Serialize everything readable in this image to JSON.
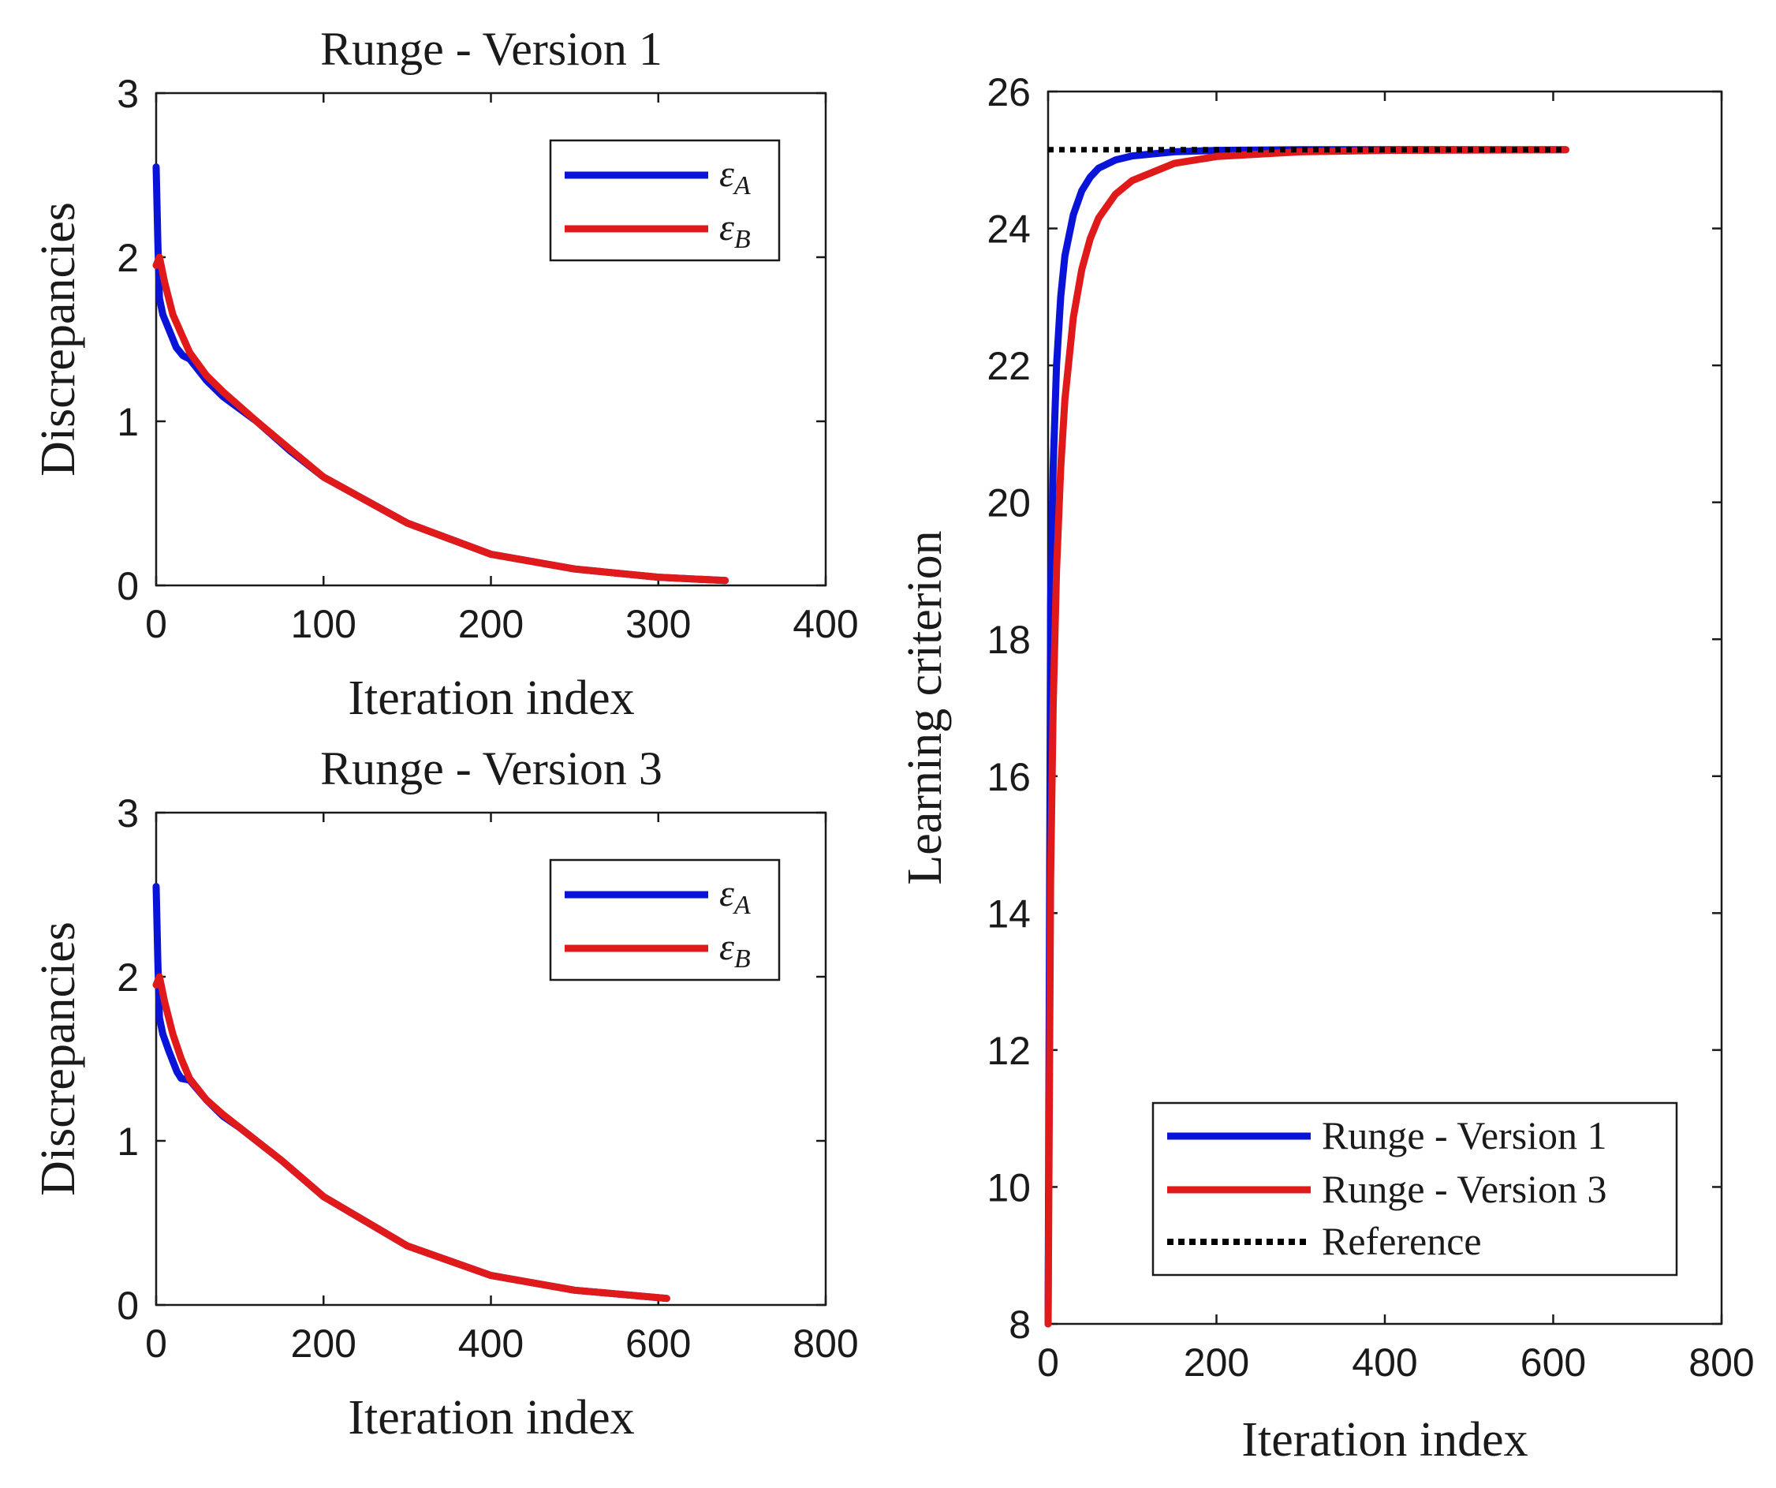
{
  "colors": {
    "series_a": "#0a14d8",
    "series_b": "#e01a1a",
    "reference": "#000000"
  },
  "chart_data": [
    {
      "id": "top-left",
      "type": "line",
      "title": "Runge - Version 1",
      "xlabel": "Iteration index",
      "ylabel": "Discrepancies",
      "xlim": [
        0,
        400
      ],
      "ylim": [
        0,
        3
      ],
      "xticks": [
        0,
        100,
        200,
        300,
        400
      ],
      "yticks": [
        0,
        1,
        2,
        3
      ],
      "legend_position": "top-right",
      "series": [
        {
          "name": "ε_A",
          "symbol": "ε",
          "subscript": "A",
          "color": "#0a14d8",
          "x": [
            0,
            1,
            2,
            4,
            8,
            12,
            16,
            20,
            30,
            40,
            60,
            80,
            100,
            150,
            200,
            250,
            300,
            340
          ],
          "y": [
            2.55,
            2.1,
            1.75,
            1.65,
            1.55,
            1.45,
            1.4,
            1.38,
            1.25,
            1.15,
            1.0,
            0.82,
            0.66,
            0.38,
            0.19,
            0.1,
            0.05,
            0.03
          ]
        },
        {
          "name": "ε_B",
          "symbol": "ε",
          "subscript": "B",
          "color": "#e01a1a",
          "x": [
            0,
            2,
            5,
            10,
            20,
            30,
            40,
            60,
            80,
            100,
            150,
            200,
            250,
            300,
            340
          ],
          "y": [
            1.95,
            2.0,
            1.85,
            1.65,
            1.42,
            1.28,
            1.18,
            1.0,
            0.83,
            0.66,
            0.38,
            0.19,
            0.1,
            0.05,
            0.03
          ]
        }
      ]
    },
    {
      "id": "bottom-left",
      "type": "line",
      "title": "Runge - Version 3",
      "xlabel": "Iteration index",
      "ylabel": "Discrepancies",
      "xlim": [
        0,
        800
      ],
      "ylim": [
        0,
        3
      ],
      "xticks": [
        0,
        200,
        400,
        600,
        800
      ],
      "yticks": [
        0,
        1,
        2,
        3
      ],
      "legend_position": "top-right",
      "series": [
        {
          "name": "ε_A",
          "symbol": "ε",
          "subscript": "A",
          "color": "#0a14d8",
          "x": [
            0,
            2,
            4,
            8,
            15,
            25,
            30,
            40,
            60,
            80,
            100,
            150,
            200,
            300,
            400,
            500,
            610
          ],
          "y": [
            2.55,
            2.1,
            1.75,
            1.65,
            1.55,
            1.42,
            1.38,
            1.37,
            1.25,
            1.15,
            1.08,
            0.88,
            0.66,
            0.36,
            0.18,
            0.09,
            0.04
          ]
        },
        {
          "name": "ε_B",
          "symbol": "ε",
          "subscript": "B",
          "color": "#e01a1a",
          "x": [
            0,
            4,
            10,
            20,
            30,
            40,
            60,
            80,
            100,
            150,
            200,
            300,
            400,
            500,
            610
          ],
          "y": [
            1.95,
            2.0,
            1.85,
            1.65,
            1.5,
            1.38,
            1.25,
            1.16,
            1.08,
            0.88,
            0.66,
            0.36,
            0.18,
            0.09,
            0.04
          ]
        }
      ]
    },
    {
      "id": "right",
      "type": "line",
      "title": "",
      "xlabel": "Iteration index",
      "ylabel": "Learning criterion",
      "xlim": [
        0,
        800
      ],
      "ylim": [
        8,
        26
      ],
      "xticks": [
        0,
        200,
        400,
        600,
        800
      ],
      "yticks": [
        8,
        10,
        12,
        14,
        16,
        18,
        20,
        22,
        24,
        26
      ],
      "legend_position": "bottom-right",
      "series": [
        {
          "name": "Runge - Version 1",
          "color": "#0a14d8",
          "x": [
            0,
            3,
            6,
            10,
            15,
            20,
            30,
            40,
            50,
            60,
            80,
            100,
            150,
            200,
            300,
            400,
            615
          ],
          "y": [
            8.0,
            18.5,
            20.5,
            22.0,
            23.0,
            23.6,
            24.2,
            24.55,
            24.75,
            24.88,
            25.0,
            25.06,
            25.12,
            25.14,
            25.15,
            25.15,
            25.15
          ]
        },
        {
          "name": "Runge - Version 3",
          "color": "#e01a1a",
          "x": [
            0,
            3,
            6,
            10,
            15,
            20,
            30,
            40,
            50,
            60,
            80,
            100,
            150,
            200,
            300,
            400,
            615
          ],
          "y": [
            8.0,
            14.5,
            17.0,
            19.0,
            20.5,
            21.5,
            22.7,
            23.4,
            23.85,
            24.15,
            24.5,
            24.7,
            24.95,
            25.05,
            25.12,
            25.14,
            25.15
          ]
        },
        {
          "name": "Reference",
          "color": "#000000",
          "style": "dotted",
          "x": [
            0,
            615
          ],
          "y": [
            25.15,
            25.15
          ]
        }
      ]
    }
  ]
}
